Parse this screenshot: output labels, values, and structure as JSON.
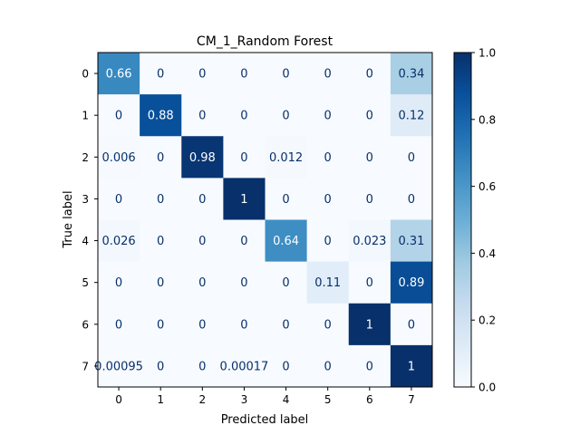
{
  "chart_data": {
    "type": "heatmap",
    "title": "CM_1_Random Forest",
    "xlabel": "Predicted label",
    "ylabel": "True label",
    "x_categories": [
      "0",
      "1",
      "2",
      "3",
      "4",
      "5",
      "6",
      "7"
    ],
    "y_categories": [
      "0",
      "1",
      "2",
      "3",
      "4",
      "5",
      "6",
      "7"
    ],
    "values": [
      [
        0.66,
        0,
        0,
        0,
        0,
        0,
        0,
        0.34
      ],
      [
        0,
        0.88,
        0,
        0,
        0,
        0,
        0,
        0.12
      ],
      [
        0.006,
        0,
        0.98,
        0,
        0.012,
        0,
        0,
        0
      ],
      [
        0,
        0,
        0,
        1,
        0,
        0,
        0,
        0
      ],
      [
        0.026,
        0,
        0,
        0,
        0.64,
        0,
        0.023,
        0.31
      ],
      [
        0,
        0,
        0,
        0,
        0,
        0.11,
        0,
        0.89
      ],
      [
        0,
        0,
        0,
        0,
        0,
        0,
        1,
        0
      ],
      [
        0.00095,
        0,
        0,
        0.00017,
        0,
        0,
        0,
        1
      ]
    ],
    "cell_labels": [
      [
        "0.66",
        "0",
        "0",
        "0",
        "0",
        "0",
        "0",
        "0.34"
      ],
      [
        "0",
        "0.88",
        "0",
        "0",
        "0",
        "0",
        "0",
        "0.12"
      ],
      [
        "0.006",
        "0",
        "0.98",
        "0",
        "0.012",
        "0",
        "0",
        "0"
      ],
      [
        "0",
        "0",
        "0",
        "1",
        "0",
        "0",
        "0",
        "0"
      ],
      [
        "0.026",
        "0",
        "0",
        "0",
        "0.64",
        "0",
        "0.023",
        "0.31"
      ],
      [
        "0",
        "0",
        "0",
        "0",
        "0",
        "0.11",
        "0",
        "0.89"
      ],
      [
        "0",
        "0",
        "0",
        "0",
        "0",
        "0",
        "1",
        "0"
      ],
      [
        "0.00095",
        "0",
        "0",
        "0.00017",
        "0",
        "0",
        "0",
        "1"
      ]
    ],
    "colormap": "Blues",
    "color_range": [
      0.0,
      1.0
    ],
    "colorbar_ticks": [
      "0.0",
      "0.2",
      "0.4",
      "0.6",
      "0.8",
      "1.0"
    ],
    "grid": false
  }
}
